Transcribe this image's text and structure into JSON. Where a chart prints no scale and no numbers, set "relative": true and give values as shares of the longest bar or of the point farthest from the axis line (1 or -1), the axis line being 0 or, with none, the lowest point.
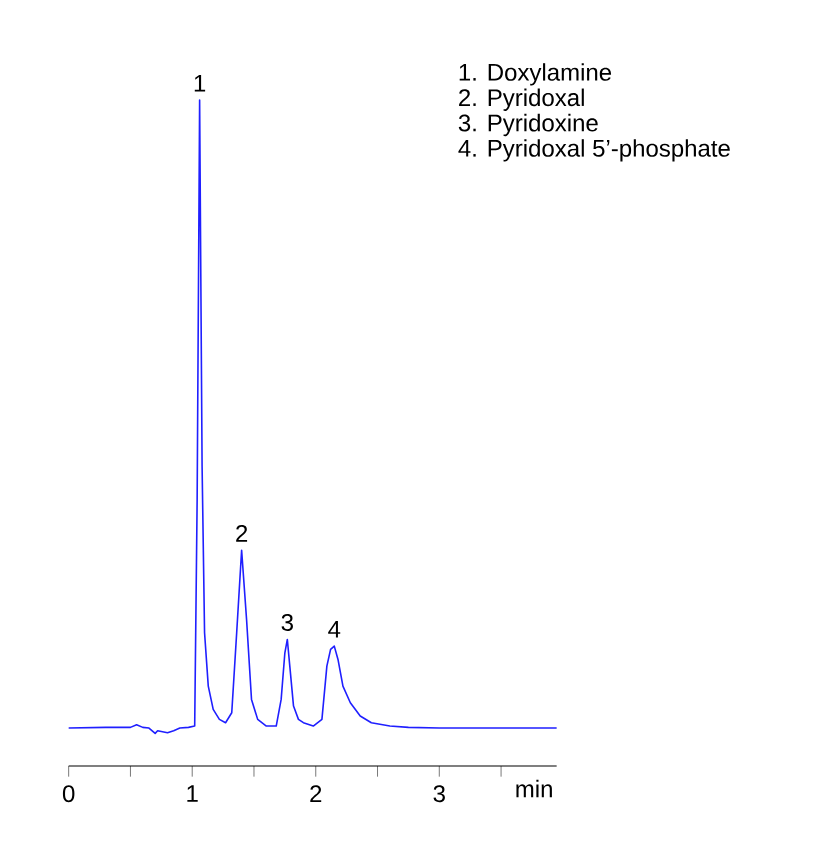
{
  "chart_data": {
    "type": "line",
    "relative": true,
    "color": "#1f1fff",
    "xlabel": "min",
    "xlim": [
      0,
      3.95
    ],
    "xticks": [
      0,
      {
        "value": 0.5,
        "label": null
      },
      1,
      {
        "value": 1.5,
        "label": null
      },
      2,
      {
        "value": 2.5,
        "label": null
      },
      3,
      {
        "value": 3.5,
        "label": null
      }
    ],
    "x": [
      0,
      0.3,
      0.5,
      0.55,
      0.6,
      0.65,
      0.7,
      0.72,
      0.8,
      0.85,
      0.9,
      0.97,
      1.02,
      1.04,
      1.06,
      1.08,
      1.1,
      1.13,
      1.17,
      1.22,
      1.27,
      1.32,
      1.36,
      1.4,
      1.44,
      1.48,
      1.53,
      1.6,
      1.68,
      1.72,
      1.75,
      1.77,
      1.79,
      1.82,
      1.86,
      1.9,
      1.98,
      2.05,
      2.09,
      2.12,
      2.15,
      2.18,
      2.22,
      2.28,
      2.36,
      2.45,
      2.6,
      2.75,
      3.0,
      3.5,
      3.95
    ],
    "values": [
      0.057,
      0.058,
      0.058,
      0.062,
      0.058,
      0.057,
      0.049,
      0.053,
      0.05,
      0.053,
      0.057,
      0.058,
      0.06,
      0.4,
      1.0,
      0.45,
      0.2,
      0.12,
      0.085,
      0.07,
      0.065,
      0.08,
      0.2,
      0.324,
      0.22,
      0.1,
      0.07,
      0.06,
      0.06,
      0.1,
      0.17,
      0.19,
      0.15,
      0.09,
      0.07,
      0.065,
      0.06,
      0.07,
      0.15,
      0.175,
      0.18,
      0.16,
      0.12,
      0.095,
      0.075,
      0.065,
      0.06,
      0.058,
      0.057,
      0.057,
      0.057
    ],
    "annotations": [
      {
        "text": "1",
        "x": 1.06,
        "y": 1.0
      },
      {
        "text": "2",
        "x": 1.4,
        "y": 0.324
      },
      {
        "text": "3",
        "x": 1.77,
        "y": 0.19
      },
      {
        "text": "4",
        "x": 2.15,
        "y": 0.18
      },
      "1.  Doxylamine",
      "2.  Pyridoxal",
      "3.  Pyridoxine",
      "4.  Pyridoxal 5’-phosphate"
    ]
  }
}
